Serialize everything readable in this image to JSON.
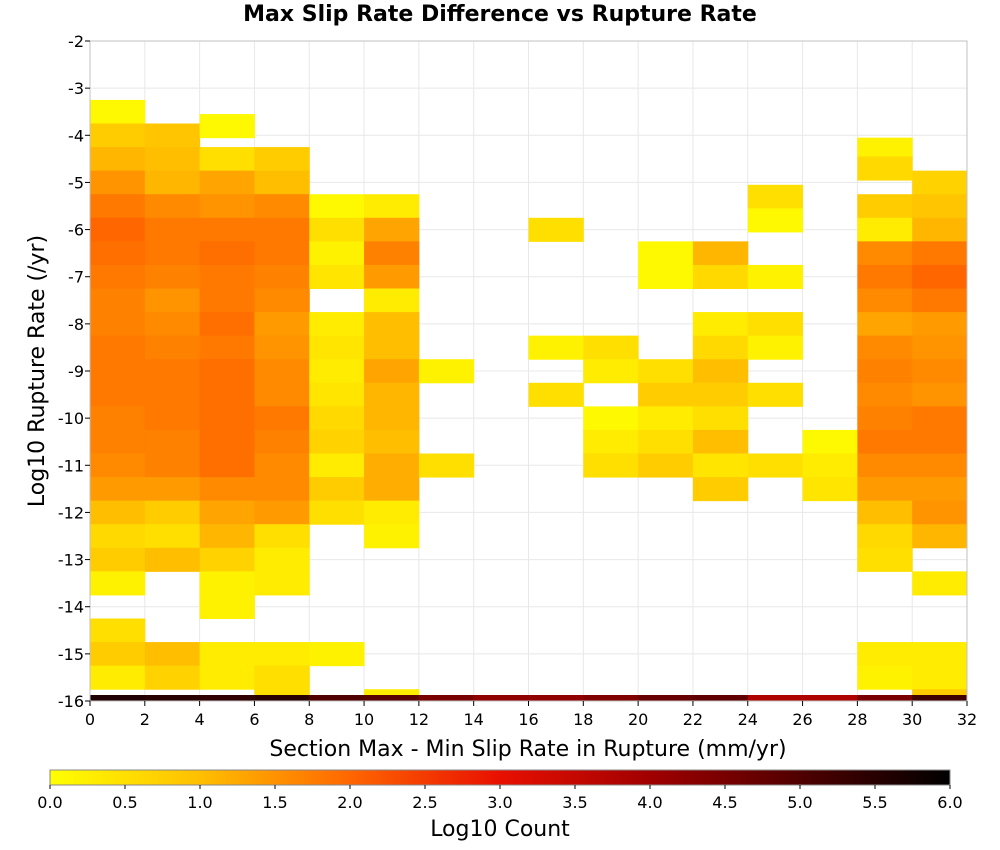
{
  "chart_data": {
    "type": "heatmap",
    "title": "Max Slip Rate Difference vs Rupture Rate",
    "xlabel": "Section Max - Min Slip Rate in Rupture (mm/yr)",
    "ylabel": "Log10 Rupture Rate (/yr)",
    "xlim": [
      0,
      32
    ],
    "ylim": [
      -16,
      -2
    ],
    "x_ticks": [
      "0",
      "2",
      "4",
      "6",
      "8",
      "10",
      "12",
      "14",
      "16",
      "18",
      "20",
      "22",
      "24",
      "26",
      "28",
      "30",
      "32"
    ],
    "y_ticks": [
      "-2",
      "-3",
      "-4",
      "-5",
      "-6",
      "-7",
      "-8",
      "-9",
      "-10",
      "-11",
      "-12",
      "-13",
      "-14",
      "-15",
      "-16"
    ],
    "x_bin_width": 2,
    "y_bin_height": 0.5,
    "grid": true,
    "colorbar": {
      "label": "Log10 Count",
      "range": [
        0,
        6
      ],
      "ticks": [
        "0.0",
        "0.5",
        "1.0",
        "1.5",
        "2.0",
        "2.5",
        "3.0",
        "3.5",
        "4.0",
        "4.5",
        "5.0",
        "5.5",
        "6.0"
      ],
      "stops": [
        {
          "v": 0.0,
          "color": "#ffff00"
        },
        {
          "v": 1.0,
          "color": "#ffbf00"
        },
        {
          "v": 2.0,
          "color": "#ff6600"
        },
        {
          "v": 3.0,
          "color": "#e81000"
        },
        {
          "v": 4.0,
          "color": "#a00000"
        },
        {
          "v": 5.0,
          "color": "#500000"
        },
        {
          "v": 6.0,
          "color": "#000000"
        }
      ]
    },
    "cells": [
      [
        0,
        -3.5,
        0.1
      ],
      [
        0,
        -4,
        0.8
      ],
      [
        0,
        -4.5,
        1.1
      ],
      [
        0,
        -5,
        1.5
      ],
      [
        0,
        -5.5,
        1.8
      ],
      [
        0,
        -6,
        2.0
      ],
      [
        0,
        -6.5,
        1.9
      ],
      [
        0,
        -7,
        1.8
      ],
      [
        0,
        -7.5,
        1.7
      ],
      [
        0,
        -8,
        1.7
      ],
      [
        0,
        -8.5,
        1.8
      ],
      [
        0,
        -9,
        1.8
      ],
      [
        0,
        -9.5,
        1.8
      ],
      [
        0,
        -10,
        1.7
      ],
      [
        0,
        -10.5,
        1.7
      ],
      [
        0,
        -11,
        1.6
      ],
      [
        0,
        -11.5,
        1.4
      ],
      [
        0,
        -12,
        1.0
      ],
      [
        0,
        -12.5,
        0.6
      ],
      [
        0,
        -13,
        0.8
      ],
      [
        0,
        -13.5,
        0.2
      ],
      [
        0,
        -14.5,
        0.5
      ],
      [
        0,
        -15,
        0.8
      ],
      [
        0,
        -15.5,
        0.3
      ],
      [
        2,
        -4,
        0.9
      ],
      [
        2,
        -4.5,
        1.0
      ],
      [
        2,
        -5,
        1.1
      ],
      [
        2,
        -5.5,
        1.6
      ],
      [
        2,
        -6,
        1.8
      ],
      [
        2,
        -6.5,
        1.8
      ],
      [
        2,
        -7,
        1.7
      ],
      [
        2,
        -7.5,
        1.5
      ],
      [
        2,
        -8,
        1.6
      ],
      [
        2,
        -8.5,
        1.7
      ],
      [
        2,
        -9,
        1.8
      ],
      [
        2,
        -9.5,
        1.8
      ],
      [
        2,
        -10,
        1.8
      ],
      [
        2,
        -10.5,
        1.7
      ],
      [
        2,
        -11,
        1.7
      ],
      [
        2,
        -11.5,
        1.4
      ],
      [
        2,
        -12,
        0.8
      ],
      [
        2,
        -12.5,
        0.5
      ],
      [
        2,
        -13,
        1.0
      ],
      [
        2,
        -15,
        1.0
      ],
      [
        2,
        -15.5,
        0.7
      ],
      [
        4,
        -3.8,
        0.1
      ],
      [
        4,
        -4.5,
        0.5
      ],
      [
        4,
        -5,
        1.3
      ],
      [
        4,
        -5.5,
        1.5
      ],
      [
        4,
        -6,
        1.8
      ],
      [
        4,
        -6.5,
        1.9
      ],
      [
        4,
        -7,
        1.8
      ],
      [
        4,
        -7.5,
        1.8
      ],
      [
        4,
        -8,
        1.9
      ],
      [
        4,
        -8.5,
        1.8
      ],
      [
        4,
        -9,
        1.9
      ],
      [
        4,
        -9.5,
        1.9
      ],
      [
        4,
        -10,
        1.9
      ],
      [
        4,
        -10.5,
        1.9
      ],
      [
        4,
        -11,
        1.9
      ],
      [
        4,
        -11.5,
        1.6
      ],
      [
        4,
        -12,
        1.3
      ],
      [
        4,
        -12.5,
        1.1
      ],
      [
        4,
        -13,
        0.7
      ],
      [
        4,
        -13.5,
        0.2
      ],
      [
        4,
        -14,
        0.2
      ],
      [
        4,
        -15,
        0.3
      ],
      [
        4,
        -15.5,
        0.3
      ],
      [
        6,
        -4.5,
        0.8
      ],
      [
        6,
        -5,
        1.0
      ],
      [
        6,
        -5.5,
        1.6
      ],
      [
        6,
        -6,
        1.8
      ],
      [
        6,
        -6.5,
        1.8
      ],
      [
        6,
        -7,
        1.7
      ],
      [
        6,
        -7.5,
        1.6
      ],
      [
        6,
        -8,
        1.4
      ],
      [
        6,
        -8.5,
        1.5
      ],
      [
        6,
        -9,
        1.6
      ],
      [
        6,
        -9.5,
        1.6
      ],
      [
        6,
        -10,
        1.8
      ],
      [
        6,
        -10.5,
        1.7
      ],
      [
        6,
        -11,
        1.6
      ],
      [
        6,
        -11.5,
        1.6
      ],
      [
        6,
        -12,
        1.4
      ],
      [
        6,
        -12.5,
        0.5
      ],
      [
        6,
        -13,
        0.3
      ],
      [
        6,
        -13.5,
        0.3
      ],
      [
        6,
        -15,
        0.3
      ],
      [
        6,
        -15.5,
        0.5
      ],
      [
        6,
        -16,
        0.5
      ],
      [
        8,
        -5.5,
        0.1
      ],
      [
        8,
        -6,
        0.5
      ],
      [
        8,
        -6.5,
        0.2
      ],
      [
        8,
        -7,
        0.4
      ],
      [
        8,
        -8,
        0.3
      ],
      [
        8,
        -8.5,
        0.4
      ],
      [
        8,
        -9,
        0.3
      ],
      [
        8,
        -9.5,
        0.4
      ],
      [
        8,
        -10,
        0.6
      ],
      [
        8,
        -10.5,
        0.7
      ],
      [
        8,
        -11,
        0.3
      ],
      [
        8,
        -11.5,
        0.8
      ],
      [
        8,
        -12,
        0.5
      ],
      [
        8,
        -15,
        0.2
      ],
      [
        10,
        -5.5,
        0.3
      ],
      [
        10,
        -6,
        1.3
      ],
      [
        10,
        -6.5,
        1.7
      ],
      [
        10,
        -7,
        1.4
      ],
      [
        10,
        -7.5,
        0.3
      ],
      [
        10,
        -8,
        1.0
      ],
      [
        10,
        -8.5,
        1.0
      ],
      [
        10,
        -9,
        1.3
      ],
      [
        10,
        -9.5,
        1.1
      ],
      [
        10,
        -10,
        1.1
      ],
      [
        10,
        -10.5,
        1.0
      ],
      [
        10,
        -11,
        1.2
      ],
      [
        10,
        -11.5,
        1.2
      ],
      [
        10,
        -12,
        0.3
      ],
      [
        10,
        -12.5,
        0.2
      ],
      [
        10,
        -16,
        0.3
      ],
      [
        12,
        -9,
        0.2
      ],
      [
        12,
        -11,
        0.5
      ],
      [
        16,
        -6,
        0.5
      ],
      [
        16,
        -8.5,
        0.2
      ],
      [
        16,
        -9.5,
        0.5
      ],
      [
        18,
        -8.5,
        0.5
      ],
      [
        18,
        -9,
        0.3
      ],
      [
        18,
        -10,
        0.1
      ],
      [
        18,
        -10.5,
        0.3
      ],
      [
        18,
        -11,
        0.5
      ],
      [
        20,
        -6.5,
        0.1
      ],
      [
        20,
        -7,
        0.1
      ],
      [
        20,
        -9,
        0.5
      ],
      [
        20,
        -9.5,
        0.8
      ],
      [
        20,
        -10,
        0.3
      ],
      [
        20,
        -10.5,
        0.5
      ],
      [
        20,
        -11,
        0.8
      ],
      [
        22,
        -6.5,
        1.1
      ],
      [
        22,
        -7,
        0.6
      ],
      [
        22,
        -8,
        0.3
      ],
      [
        22,
        -8.5,
        0.6
      ],
      [
        22,
        -9,
        1.0
      ],
      [
        22,
        -9.5,
        0.8
      ],
      [
        22,
        -10,
        0.5
      ],
      [
        22,
        -10.5,
        1.0
      ],
      [
        22,
        -11,
        0.4
      ],
      [
        22,
        -11.5,
        0.8
      ],
      [
        24,
        -5.3,
        0.5
      ],
      [
        24,
        -5.8,
        0.1
      ],
      [
        24,
        -7,
        0.2
      ],
      [
        24,
        -8,
        0.5
      ],
      [
        24,
        -8.5,
        0.2
      ],
      [
        24,
        -9.5,
        0.5
      ],
      [
        24,
        -11,
        0.5
      ],
      [
        26,
        -10.5,
        0.1
      ],
      [
        26,
        -11,
        0.3
      ],
      [
        26,
        -11.5,
        0.4
      ],
      [
        28,
        -4.3,
        0.2
      ],
      [
        28,
        -4.7,
        0.6
      ],
      [
        28,
        -5.5,
        0.8
      ],
      [
        28,
        -6,
        0.3
      ],
      [
        28,
        -6.5,
        1.6
      ],
      [
        28,
        -7,
        1.8
      ],
      [
        28,
        -7.5,
        1.6
      ],
      [
        28,
        -8,
        1.3
      ],
      [
        28,
        -8.5,
        1.6
      ],
      [
        28,
        -9,
        1.7
      ],
      [
        28,
        -9.5,
        1.6
      ],
      [
        28,
        -10,
        1.7
      ],
      [
        28,
        -10.5,
        1.8
      ],
      [
        28,
        -11,
        1.6
      ],
      [
        28,
        -11.5,
        1.4
      ],
      [
        28,
        -12,
        1.0
      ],
      [
        28,
        -12.5,
        0.6
      ],
      [
        28,
        -13,
        0.5
      ],
      [
        28,
        -15,
        0.3
      ],
      [
        28,
        -15.5,
        0.2
      ],
      [
        30,
        -5,
        0.7
      ],
      [
        30,
        -5.5,
        0.9
      ],
      [
        30,
        -6,
        1.1
      ],
      [
        30,
        -6.5,
        1.8
      ],
      [
        30,
        -7,
        2.0
      ],
      [
        30,
        -7.5,
        1.8
      ],
      [
        30,
        -8,
        1.4
      ],
      [
        30,
        -8.5,
        1.5
      ],
      [
        30,
        -9,
        1.6
      ],
      [
        30,
        -9.5,
        1.5
      ],
      [
        30,
        -10,
        1.8
      ],
      [
        30,
        -10.5,
        1.8
      ],
      [
        30,
        -11,
        1.6
      ],
      [
        30,
        -11.5,
        1.4
      ],
      [
        30,
        -12,
        1.5
      ],
      [
        30,
        -12.5,
        1.1
      ],
      [
        30,
        -13.5,
        0.3
      ],
      [
        30,
        -15,
        0.3
      ],
      [
        30,
        -15.5,
        0.3
      ],
      [
        30,
        -16,
        0.8
      ]
    ],
    "bottom_row": [
      [
        0,
        5.6
      ],
      [
        2,
        5.5
      ],
      [
        4,
        5.4
      ],
      [
        6,
        5.5
      ],
      [
        8,
        5.0
      ],
      [
        10,
        4.9
      ],
      [
        12,
        4.5
      ],
      [
        14,
        4.2
      ],
      [
        16,
        4.2
      ],
      [
        18,
        4.4
      ],
      [
        20,
        4.7
      ],
      [
        22,
        4.8
      ],
      [
        24,
        3.8
      ],
      [
        26,
        3.8
      ],
      [
        28,
        4.5
      ],
      [
        30,
        5.2
      ]
    ]
  }
}
